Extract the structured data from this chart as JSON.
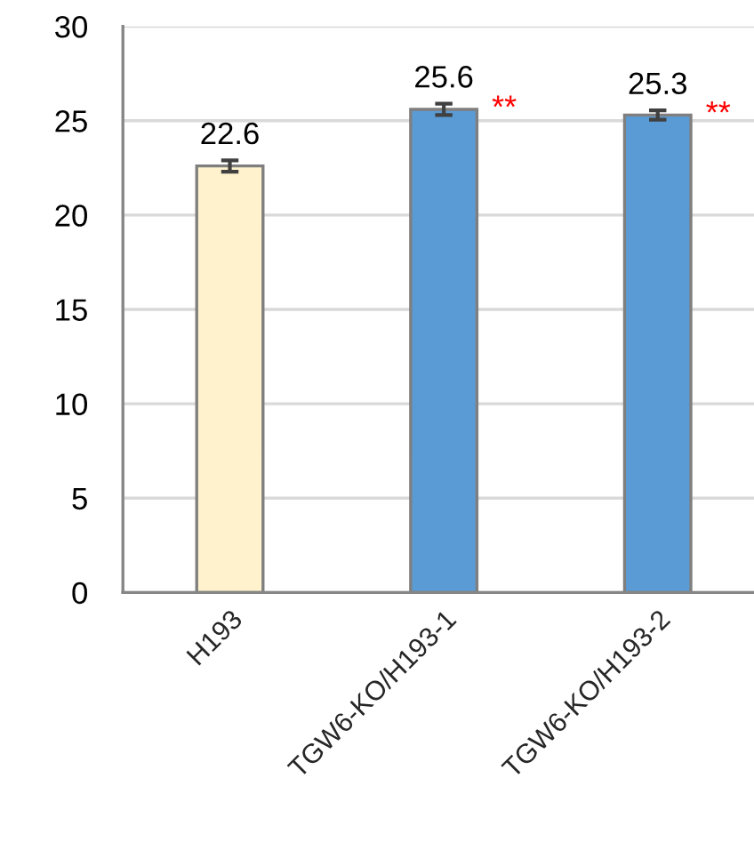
{
  "chart_data": {
    "type": "bar",
    "categories": [
      "H193",
      "TGW6-KO/H193-1",
      "TGW6-KO/H193-2"
    ],
    "values": [
      22.6,
      25.6,
      25.3
    ],
    "errors": [
      0.3,
      0.3,
      0.25
    ],
    "colors": [
      "#fff2cc",
      "#5b9bd5",
      "#5b9bd5"
    ],
    "ylim": [
      0,
      30
    ],
    "yticks": [
      0,
      5,
      10,
      15,
      20,
      25,
      30
    ],
    "grid": "y",
    "data_labels": true,
    "annotations": [
      {
        "text": "**",
        "x": "TGW6-KO/H193-1",
        "y": 25.6
      },
      {
        "text": "**",
        "x": "TGW6-KO/H193-2",
        "y": 25.3
      }
    ]
  }
}
